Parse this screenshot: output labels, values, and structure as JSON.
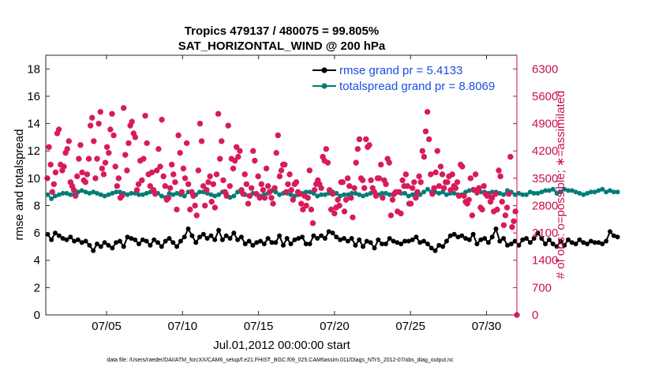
{
  "chart_data": {
    "type": "line",
    "title_line1": "Tropics 479137 / 480075 = 99.805%",
    "title_line2": "SAT_HORIZONTAL_WIND @ 200 hPa",
    "xlabel": "Jul.01,2012 00:00:00 start",
    "ylabel_left": "rmse and totalspread",
    "ylabel_right": "# of obs: o=possible; ∗=assimilated",
    "footnote": "data file: /Users/raeder/DAI/ATM_forcXX/CAM6_setup/f.e21.FHIST_BGC.f09_025.CAM6assim.011/Diags_NTrS_2012-07/obs_diag_output.nc",
    "xlim": [
      1,
      32
    ],
    "x_ticks": [
      5,
      10,
      15,
      20,
      25,
      30
    ],
    "x_tick_labels": [
      "07/05",
      "07/10",
      "07/15",
      "07/20",
      "07/25",
      "07/30"
    ],
    "ylim_left": [
      0,
      19
    ],
    "y_ticks_left": [
      0,
      2,
      4,
      6,
      8,
      10,
      12,
      14,
      16,
      18
    ],
    "y_tick_labels_left": [
      "0",
      "2",
      "4",
      "6",
      "8",
      "10",
      "12",
      "14",
      "16",
      "18"
    ],
    "ylim_right": [
      0,
      6650
    ],
    "y_ticks_right": [
      0,
      700,
      1400,
      2100,
      2800,
      3500,
      4200,
      4900,
      5600,
      6300
    ],
    "y_tick_labels_right": [
      "0",
      "700",
      "1400",
      "2100",
      "2800",
      "3500",
      "4200",
      "4900",
      "5600",
      "6300"
    ],
    "x_start": 1.125,
    "x_step": 0.25,
    "series": [
      {
        "name": "rmse grand pr = 5.4133",
        "color": "#000000",
        "marker": "circle",
        "axis": "left",
        "values": [
          5.9,
          5.5,
          6.0,
          5.8,
          5.6,
          5.5,
          5.7,
          5.4,
          5.5,
          5.3,
          5.4,
          5.1,
          4.7,
          5.2,
          5.0,
          5.3,
          5.1,
          4.9,
          5.3,
          5.4,
          5.0,
          5.7,
          5.6,
          5.5,
          5.2,
          5.5,
          5.4,
          5.1,
          5.5,
          5.3,
          5.0,
          5.4,
          5.6,
          5.3,
          5.0,
          5.4,
          5.7,
          6.3,
          5.8,
          5.3,
          5.7,
          5.9,
          5.6,
          5.8,
          5.5,
          6.2,
          5.5,
          5.8,
          5.6,
          6.0,
          5.5,
          5.7,
          5.2,
          5.4,
          5.1,
          5.3,
          5.4,
          5.2,
          5.6,
          5.3,
          5.3,
          5.8,
          5.1,
          5.6,
          5.2,
          5.5,
          5.6,
          5.7,
          5.2,
          5.2,
          5.8,
          5.6,
          5.8,
          5.6,
          6.1,
          6.0,
          5.7,
          5.5,
          5.6,
          5.4,
          5.6,
          5.1,
          5.5,
          5.0,
          5.4,
          5.3,
          4.9,
          5.5,
          5.2,
          5.2,
          5.6,
          5.4,
          5.3,
          5.2,
          5.4,
          5.4,
          5.5,
          5.7,
          5.3,
          5.4,
          5.2,
          4.9,
          4.7,
          5.1,
          5.0,
          5.4,
          5.8,
          5.9,
          5.7,
          5.8,
          5.6,
          5.5,
          5.9,
          5.2,
          5.5,
          5.6,
          5.3,
          5.7,
          6.3,
          5.4,
          5.6,
          5.1,
          5.2,
          5.4,
          5.1,
          5.5,
          5.6,
          5.3,
          5.6,
          6.0,
          5.6,
          5.2,
          5.5,
          5.2,
          5.0,
          5.4,
          5.1,
          5.5,
          5.3,
          5.2,
          5.5,
          5.3,
          5.2,
          5.4,
          5.3,
          5.3,
          5.2,
          5.4,
          6.1,
          5.8,
          5.7
        ]
      },
      {
        "name": "totalspread grand pr = 8.8069",
        "color": "#007c78",
        "marker": "circle",
        "axis": "left",
        "values": [
          8.8,
          8.5,
          8.7,
          8.8,
          8.9,
          8.9,
          8.8,
          8.8,
          9.0,
          9.1,
          9.0,
          8.9,
          9.0,
          8.9,
          8.8,
          8.7,
          8.8,
          8.9,
          9.0,
          9.0,
          8.9,
          8.8,
          8.9,
          8.9,
          8.8,
          8.8,
          8.9,
          9.0,
          9.1,
          8.9,
          8.7,
          8.6,
          8.9,
          8.8,
          8.9,
          8.8,
          8.7,
          9.0,
          8.9,
          8.8,
          9.0,
          9.0,
          8.9,
          8.8,
          8.7,
          8.8,
          9.0,
          8.9,
          8.6,
          8.7,
          9.0,
          9.0,
          8.8,
          8.7,
          8.9,
          8.8,
          8.7,
          8.8,
          8.9,
          9.1,
          9.0,
          8.8,
          8.9,
          8.9,
          8.8,
          8.7,
          8.8,
          8.9,
          9.0,
          9.0,
          8.9,
          8.7,
          8.8,
          8.8,
          8.9,
          9.0,
          8.9,
          8.7,
          8.8,
          8.8,
          8.9,
          8.9,
          8.8,
          8.7,
          8.8,
          8.9,
          9.0,
          8.8,
          8.9,
          8.9,
          8.8,
          8.8,
          9.0,
          8.9,
          8.9,
          8.7,
          8.8,
          8.9,
          8.8,
          9.0,
          9.2,
          9.0,
          9.0,
          8.9,
          9.0,
          8.8,
          8.9,
          8.9,
          8.8,
          8.8,
          9.0,
          9.1,
          9.2,
          8.9,
          9.0,
          9.0,
          8.9,
          9.0,
          9.0,
          8.9,
          8.8,
          9.1,
          9.0,
          8.8,
          8.9,
          8.8,
          8.8,
          9.0,
          8.9,
          8.9,
          9.0,
          9.1,
          9.1,
          9.2,
          8.9,
          9.0,
          9.2,
          9.1,
          9.1,
          9.0,
          8.9,
          8.8,
          8.9,
          9.0,
          9.0,
          9.1,
          9.2,
          9.0,
          9.1,
          9.0,
          9.0
        ]
      },
      {
        "name": "assimilated",
        "color": "#d81b5a",
        "marker": "star",
        "axis": "right",
        "values": [
          3500,
          4300,
          3850,
          3150,
          3350,
          3650,
          4650,
          4750,
          3850,
          3700,
          3800,
          4150,
          4250,
          4450,
          3400,
          3300,
          3200,
          3050,
          3550,
          4000,
          4350,
          3650,
          3450,
          3400,
          3600,
          4000,
          4850,
          5050,
          4450,
          3500,
          4000,
          4900,
          5200,
          3750,
          3600,
          3900,
          4300,
          4150,
          4750,
          5150,
          4600,
          3800,
          3300,
          3500,
          3000,
          3050,
          5300,
          4100,
          3700,
          4400,
          4850,
          4950,
          4650,
          4550,
          3200,
          3350,
          3950,
          3450,
          4000,
          5100,
          4400,
          3600,
          3300,
          3650,
          3200,
          3100,
          3700,
          4250,
          3800,
          5000,
          3550,
          3300,
          2950,
          3000,
          3250,
          3850,
          3600,
          3400,
          2700,
          4600,
          4150,
          3150,
          3750,
          3500,
          4400,
          3350,
          2700,
          3150,
          3050,
          2800,
          2550,
          3700,
          4900,
          4450,
          3300,
          2800,
          3200,
          3400,
          3550,
          2900,
          3350,
          2750,
          3600,
          5150,
          4000,
          4450,
          3450,
          3150,
          3050,
          4850,
          3300,
          4000,
          3750,
          3950,
          4300,
          4050,
          4200,
          3200,
          3100,
          3600,
          3350,
          2850,
          3050,
          3250,
          4200,
          3950,
          3100,
          3550,
          3000,
          3350,
          3200,
          3000,
          3750,
          3300,
          3150,
          3000,
          2850,
          3250,
          4150,
          4600,
          3550,
          3700,
          3850,
          3850,
          3150,
          3350,
          3600,
          3200,
          2950,
          3350,
          3400,
          3150,
          3100,
          2850,
          2700,
          3050,
          2800,
          3000,
          3700,
          2700,
          2350,
          3200,
          3350,
          3450,
          3350,
          3250,
          4050,
          3950,
          4250,
          3900,
          3200,
          2700,
          3100,
          2600,
          2750,
          2950,
          2800,
          3400,
          3400,
          2650,
          2950,
          3500,
          3300,
          3000,
          2500,
          3250,
          3900,
          4250,
          4500,
          3500,
          3450,
          3250,
          4500,
          4300,
          4350,
          3450,
          3250,
          3150,
          3050,
          3500,
          3500,
          3850,
          3000,
          3450,
          3350,
          4000,
          3900,
          2550,
          2950,
          3100,
          3150,
          2650,
          3150,
          2600,
          3450,
          3300,
          3600,
          3300,
          2850,
          2850,
          3250,
          3400,
          3000,
          3150,
          3550,
          3400,
          4200,
          4050,
          4700,
          5200,
          4500,
          3600,
          3100,
          3250,
          3650,
          4200,
          3300,
          3800,
          3600,
          3250,
          3400,
          3400,
          3550,
          3200,
          3600,
          3300,
          3250,
          3400,
          3050,
          3850,
          3800,
          3050,
          2900,
          2850,
          2950,
          3500,
          2550,
          3200,
          3600,
          3150,
          3250,
          2750,
          2700,
          3300,
          3100,
          3050,
          3050,
          2900,
          3000,
          2650,
          3100,
          2700,
          3700,
          3550,
          2900,
          2300,
          2550,
          2750,
          3100,
          4050,
          2250,
          2400,
          2650
        ]
      }
    ],
    "extra_points": [
      {
        "series": "assimilated",
        "x": 32.0,
        "y": 0
      }
    ]
  }
}
